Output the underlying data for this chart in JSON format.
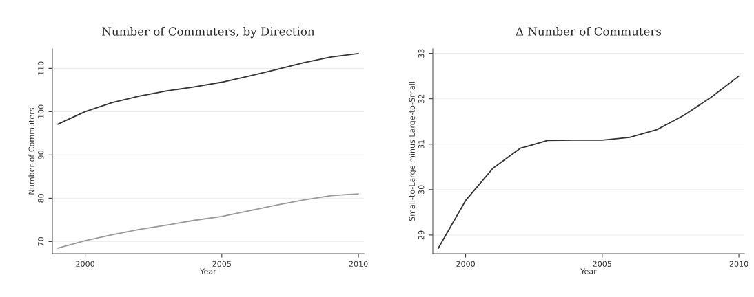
{
  "chart_data": [
    {
      "type": "line",
      "title": "Number of Commuters, by Direction",
      "xlabel": "Year",
      "ylabel": "Number of Commuters",
      "x": [
        1999,
        2000,
        2001,
        2002,
        2003,
        2004,
        2005,
        2006,
        2007,
        2008,
        2009,
        2010
      ],
      "series": [
        {
          "color": "#333333",
          "values": [
            97.1,
            100.0,
            102.1,
            103.6,
            104.8,
            105.7,
            106.8,
            108.2,
            109.7,
            111.3,
            112.6,
            113.4
          ]
        },
        {
          "color": "#999999",
          "values": [
            68.5,
            70.2,
            71.6,
            72.8,
            73.8,
            74.9,
            75.8,
            77.1,
            78.4,
            79.6,
            80.6,
            81.0
          ]
        }
      ],
      "xlim": [
        1998.8,
        2010.2
      ],
      "xticks": [
        2000,
        2005,
        2010
      ],
      "ylim": [
        67.2,
        114.5
      ],
      "yticks": [
        70,
        80,
        90,
        100,
        110
      ],
      "grid": "y"
    },
    {
      "type": "line",
      "title": "Δ Number of Commuters",
      "xlabel": "Year",
      "ylabel": "Small-to-Large minus Large-to-Small",
      "x": [
        1999,
        2000,
        2001,
        2002,
        2003,
        2004,
        2005,
        2006,
        2007,
        2008,
        2009,
        2010
      ],
      "series": [
        {
          "color": "#333333",
          "values": [
            28.71,
            29.76,
            30.47,
            30.91,
            31.08,
            31.09,
            31.09,
            31.15,
            31.32,
            31.64,
            32.04,
            32.5
          ]
        }
      ],
      "xlim": [
        1998.8,
        2010.2
      ],
      "xticks": [
        2000,
        2005,
        2010
      ],
      "ylim": [
        28.59,
        33.1
      ],
      "yticks": [
        29,
        30,
        31,
        32,
        33
      ],
      "grid": "y"
    }
  ]
}
